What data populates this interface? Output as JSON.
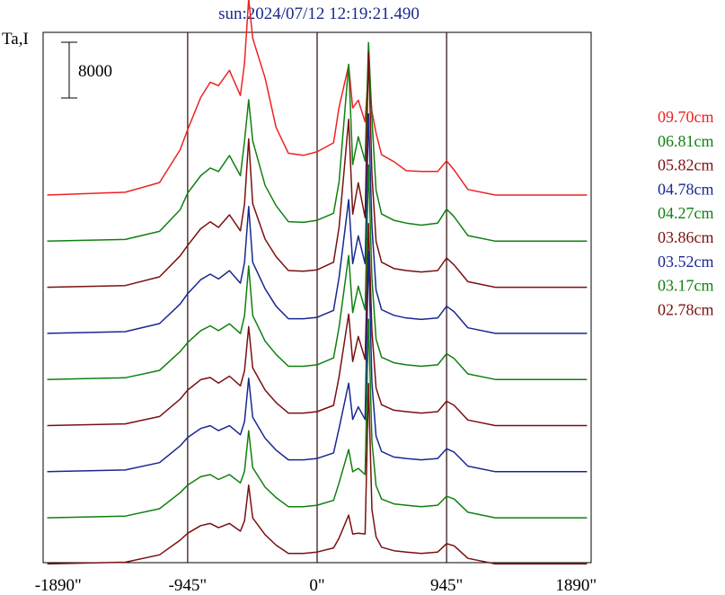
{
  "chart_data": {
    "type": "line",
    "title": "sun:2024/07/12 12:19:21.490",
    "ylabel": "Ta,I",
    "xlabel": "",
    "xlim": [
      -2000,
      2000
    ],
    "x_ticks": [
      {
        "value": -1890,
        "label": "-1890\""
      },
      {
        "value": -945,
        "label": "-945\""
      },
      {
        "value": 0,
        "label": "0\""
      },
      {
        "value": 945,
        "label": "945\""
      },
      {
        "value": 1890,
        "label": "1890\""
      }
    ],
    "vertical_lines": [
      -945,
      0,
      945
    ],
    "scale_bar": {
      "value": 8000,
      "label": "8000"
    },
    "grid": false,
    "legend_position": "right",
    "x": [
      -1970,
      -1400,
      -1150,
      -1000,
      -945,
      -850,
      -780,
      -720,
      -640,
      -560,
      -530,
      -500,
      -470,
      -380,
      -300,
      -210,
      -100,
      0,
      120,
      160,
      230,
      260,
      300,
      350,
      375,
      400,
      430,
      470,
      560,
      650,
      760,
      880,
      945,
      1000,
      1100,
      1300,
      1970
    ],
    "series": [
      {
        "name": "09.70cm",
        "color": "#ee2222",
        "values": [
          0,
          400,
          1800,
          6500,
          9400,
          14000,
          16200,
          15700,
          17900,
          14300,
          19000,
          28200,
          22500,
          16800,
          9700,
          6000,
          5700,
          6200,
          7500,
          12600,
          18600,
          12500,
          13600,
          10500,
          18200,
          12000,
          8900,
          5800,
          4800,
          3500,
          3400,
          3400,
          4900,
          3600,
          800,
          0,
          0
        ]
      },
      {
        "name": "06.81cm",
        "color": "#108010",
        "values": [
          0,
          250,
          1400,
          4500,
          6900,
          9400,
          10500,
          10000,
          12300,
          9400,
          14400,
          20300,
          14400,
          8000,
          5100,
          2800,
          2700,
          3000,
          4000,
          8500,
          25400,
          11000,
          15000,
          11500,
          28500,
          17600,
          7300,
          3900,
          3000,
          2600,
          2300,
          2600,
          4600,
          3500,
          800,
          0,
          0
        ]
      },
      {
        "name": "05.82cm",
        "color": "#7a1010",
        "values": [
          0,
          250,
          1500,
          4500,
          6000,
          8400,
          9400,
          8600,
          10400,
          8100,
          12000,
          21300,
          12000,
          6900,
          4400,
          2400,
          2300,
          2500,
          3600,
          8600,
          24100,
          10500,
          15000,
          10000,
          33800,
          16200,
          6600,
          3600,
          2700,
          2400,
          2200,
          2400,
          4200,
          3200,
          800,
          0,
          0
        ]
      },
      {
        "name": "04.78cm",
        "color": "#182890",
        "values": [
          0,
          250,
          1400,
          4200,
          5700,
          7700,
          8500,
          7800,
          9000,
          7200,
          10200,
          18200,
          10200,
          6400,
          3900,
          2100,
          2100,
          2300,
          3300,
          8000,
          19200,
          10000,
          14000,
          10000,
          31500,
          15400,
          6200,
          3400,
          2600,
          2200,
          2000,
          2200,
          3900,
          3100,
          800,
          0,
          0
        ]
      },
      {
        "name": "04.27cm",
        "color": "#108010",
        "values": [
          0,
          250,
          1300,
          4000,
          5300,
          7000,
          7700,
          7000,
          8000,
          6600,
          9200,
          16300,
          9200,
          5500,
          3600,
          1900,
          1900,
          2100,
          3100,
          7500,
          17800,
          9600,
          13400,
          10000,
          30800,
          14500,
          5800,
          3200,
          2400,
          2100,
          1900,
          2100,
          3700,
          3000,
          800,
          0,
          0
        ]
      },
      {
        "name": "03.86cm",
        "color": "#7a1010",
        "values": [
          0,
          250,
          1300,
          3800,
          5100,
          6600,
          6900,
          6100,
          7100,
          5700,
          7900,
          14200,
          8300,
          5100,
          3300,
          1800,
          1800,
          2000,
          2900,
          7000,
          16000,
          9200,
          12800,
          9500,
          29000,
          13600,
          5400,
          3000,
          2200,
          2000,
          1800,
          2000,
          3500,
          2900,
          800,
          0,
          0
        ]
      },
      {
        "name": "03.52cm",
        "color": "#182890",
        "values": [
          0,
          250,
          1300,
          3700,
          4900,
          6200,
          6600,
          5900,
          6600,
          5300,
          7200,
          13400,
          7800,
          4800,
          3100,
          1700,
          1700,
          1900,
          2700,
          6200,
          12700,
          7500,
          9300,
          7500,
          31600,
          12700,
          5100,
          2900,
          2100,
          1900,
          1700,
          1900,
          3300,
          2800,
          800,
          0,
          0
        ]
      },
      {
        "name": "03.17cm",
        "color": "#108010",
        "values": [
          0,
          250,
          1300,
          3600,
          4700,
          5900,
          6200,
          5500,
          6200,
          5000,
          6700,
          12500,
          7200,
          4400,
          2900,
          1600,
          1600,
          1800,
          2500,
          5000,
          9800,
          6600,
          7100,
          6200,
          28500,
          11000,
          4600,
          2700,
          2000,
          1800,
          1600,
          1800,
          3100,
          2700,
          800,
          0,
          0
        ]
      },
      {
        "name": "02.78cm",
        "color": "#7a1010",
        "values": [
          0,
          250,
          1300,
          3400,
          4400,
          5500,
          5800,
          5200,
          5800,
          4700,
          6200,
          11300,
          6600,
          4200,
          2700,
          1500,
          1500,
          1700,
          2300,
          3700,
          7000,
          4300,
          4400,
          4300,
          25900,
          7800,
          3900,
          2400,
          1900,
          1700,
          1500,
          1700,
          2900,
          2600,
          800,
          0,
          0
        ]
      }
    ]
  }
}
